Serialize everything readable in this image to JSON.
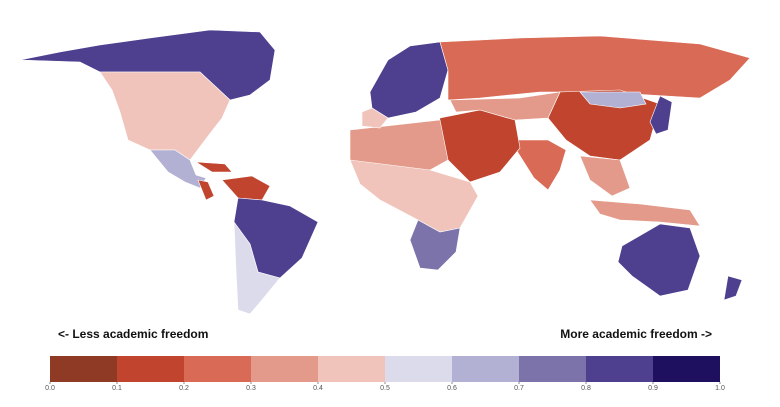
{
  "map": {
    "annotations": {
      "left": "<- Less academic freedom",
      "right": "More academic freedom ->"
    },
    "legend": {
      "range": [
        0,
        1
      ],
      "colors": [
        "#8e3a24",
        "#c0442e",
        "#d96a55",
        "#e39a8a",
        "#f0c4bb",
        "#dcdbec",
        "#b3b1d3",
        "#7b73a9",
        "#4e408f",
        "#1f0f5f"
      ],
      "ticks": [
        {
          "value": 0,
          "label": "0.0"
        },
        0.1,
        0.2,
        0.3,
        0.4,
        0.5,
        0.6,
        0.7,
        0.8,
        0.9,
        {
          "value": 1,
          "label": "1.0"
        }
      ]
    },
    "regions": [
      {
        "value": 0.85
      },
      {
        "value": 0.42
      },
      {
        "value": 0.62
      },
      {
        "value": 0.15
      },
      {
        "value": 0.15
      },
      {
        "value": 0.85
      },
      {
        "value": 0.55
      },
      {
        "value": 0.82
      },
      {
        "value": 0.2
      },
      {
        "value": 0.1
      },
      {
        "value": 0.25
      },
      {
        "value": 0.12
      },
      {
        "value": 0.3
      },
      {
        "value": 0.45
      },
      {
        "value": 0.72
      },
      {
        "value": 0.3
      },
      {
        "value": 0.3
      },
      {
        "value": 0.85
      },
      {
        "value": 0.35
      },
      {
        "value": 0.62
      },
      {
        "value": 0.85
      },
      {
        "value": 0.8
      },
      {
        "value": 0.42
      }
    ]
  }
}
